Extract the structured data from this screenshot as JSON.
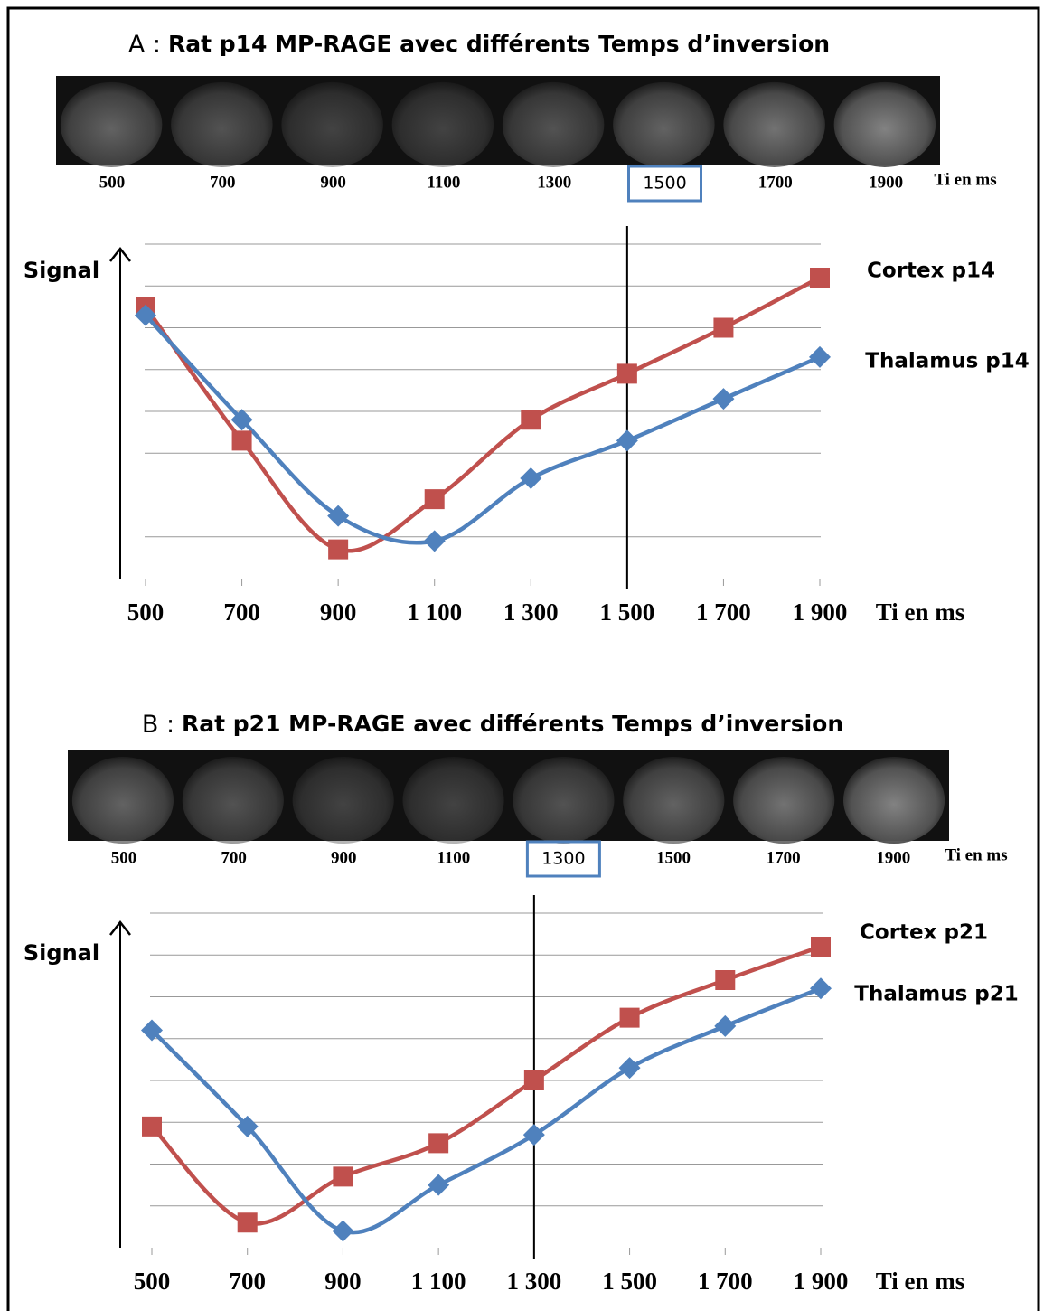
{
  "chart_data": [
    {
      "type": "line",
      "title": "Rat p14 MP-RAGE avec différents Temps d’inversion",
      "panel": "A :",
      "image_labels": [
        "500",
        "700",
        "900",
        "1100",
        "1300",
        "1500",
        "1700",
        "1900"
      ],
      "image_unit": "Ti en ms",
      "selected_ti": 1500,
      "y_label": "Signal",
      "x_label": "Ti en ms",
      "x": [
        500,
        700,
        900,
        1100,
        1300,
        1500,
        1700,
        1900
      ],
      "xlim": [
        500,
        1900
      ],
      "ylim": [
        0,
        8
      ],
      "xticks": [
        500,
        700,
        900,
        {
          "value": 1100,
          "label": "1 100"
        },
        {
          "value": 1300,
          "label": "1 300"
        },
        {
          "value": 1500,
          "label": "1 500"
        },
        {
          "value": 1700,
          "label": "1 700"
        },
        {
          "value": 1900,
          "label": "1 900"
        }
      ],
      "grid": true,
      "series": [
        {
          "name": "Cortex p14",
          "color": "#c0504d",
          "marker": "square",
          "values": [
            6.5,
            3.3,
            0.7,
            1.9,
            3.8,
            4.9,
            6.0,
            7.2
          ]
        },
        {
          "name": "Thalamus p14",
          "color": "#4f81bd",
          "marker": "diamond",
          "values": [
            6.3,
            3.8,
            1.5,
            0.9,
            2.4,
            3.3,
            4.3,
            5.3
          ]
        }
      ]
    },
    {
      "type": "line",
      "title": "Rat p21 MP-RAGE avec différents Temps d’inversion",
      "panel": "B :",
      "image_labels": [
        "500",
        "700",
        "900",
        "1100",
        "1300",
        "1500",
        "1700",
        "1900"
      ],
      "image_unit": "Ti en ms",
      "selected_ti": 1300,
      "y_label": "Signal",
      "x_label": "Ti en ms",
      "x": [
        500,
        700,
        900,
        1100,
        1300,
        1500,
        1700,
        1900
      ],
      "xlim": [
        500,
        1900
      ],
      "ylim": [
        0,
        8
      ],
      "xticks": [
        500,
        700,
        900,
        {
          "value": 1100,
          "label": "1 100"
        },
        {
          "value": 1300,
          "label": "1 300"
        },
        {
          "value": 1500,
          "label": "1 500"
        },
        {
          "value": 1700,
          "label": "1 700"
        },
        {
          "value": 1900,
          "label": "1 900"
        }
      ],
      "grid": true,
      "series": [
        {
          "name": "Cortex p21",
          "color": "#c0504d",
          "marker": "square",
          "values": [
            2.9,
            0.6,
            1.7,
            2.5,
            4.0,
            5.5,
            6.4,
            7.2
          ]
        },
        {
          "name": "Thalamus p21",
          "color": "#4f81bd",
          "marker": "diamond",
          "values": [
            5.2,
            2.9,
            0.4,
            1.5,
            2.7,
            4.3,
            5.3,
            6.2
          ]
        }
      ]
    }
  ]
}
